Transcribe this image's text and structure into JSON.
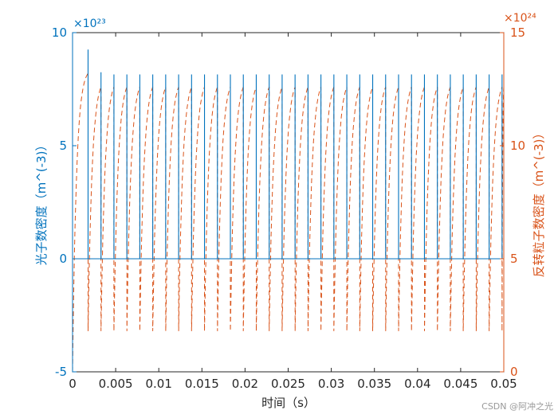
{
  "chart_data": {
    "type": "line",
    "xlabel": "时间（s）",
    "x_ticks": [
      "0",
      "0.005",
      "0.01",
      "0.015",
      "0.02",
      "0.025",
      "0.03",
      "0.035",
      "0.04",
      "0.045",
      "0.05"
    ],
    "xlim": [
      0,
      0.05
    ],
    "left_axis": {
      "label": "光子数密度（m^(-3)）",
      "ylim": [
        -5,
        10
      ],
      "ticks": [
        "-5",
        "0",
        "5",
        "10"
      ],
      "exponent": "×10²³",
      "color": "#0072BD"
    },
    "right_axis": {
      "label": "反转粒子数密度（m^(-3)）",
      "ylim": [
        0,
        15
      ],
      "ticks": [
        "0",
        "5",
        "10",
        "15"
      ],
      "exponent": "×10²⁴",
      "color": "#D95319"
    },
    "series": [
      {
        "name": "",
        "axis": "left",
        "style": "solid",
        "color": "#0072BD",
        "baseline": 0,
        "spike_x": [
          0.0018,
          0.0033,
          0.0048,
          0.0063,
          0.0078,
          0.0093,
          0.0108,
          0.0123,
          0.0138,
          0.0153,
          0.0168,
          0.0183,
          0.0198,
          0.0213,
          0.0228,
          0.0243,
          0.0258,
          0.0273,
          0.0288,
          0.0303,
          0.0318,
          0.0333,
          0.0348,
          0.0363,
          0.0378,
          0.0393,
          0.0408,
          0.0423,
          0.0438,
          0.0453,
          0.0468,
          0.0483,
          0.0498
        ],
        "spike_peaks": [
          9.25,
          8.25,
          8.15,
          8.15,
          8.15,
          8.15,
          8.15,
          8.15,
          8.15,
          8.15,
          8.15,
          8.15,
          8.15,
          8.15,
          8.15,
          8.15,
          8.15,
          8.15,
          8.15,
          8.15,
          8.15,
          8.15,
          8.15,
          8.15,
          8.15,
          8.15,
          8.15,
          8.15,
          8.15,
          8.15,
          8.15,
          8.15,
          8.15
        ]
      },
      {
        "name": "",
        "axis": "right",
        "style": "dashed",
        "color": "#D95319",
        "start_value": 0,
        "peak_first": 13.2,
        "peak": 12.6,
        "trough": 1.8
      }
    ]
  },
  "watermark": "CSDN @阿冲之光"
}
